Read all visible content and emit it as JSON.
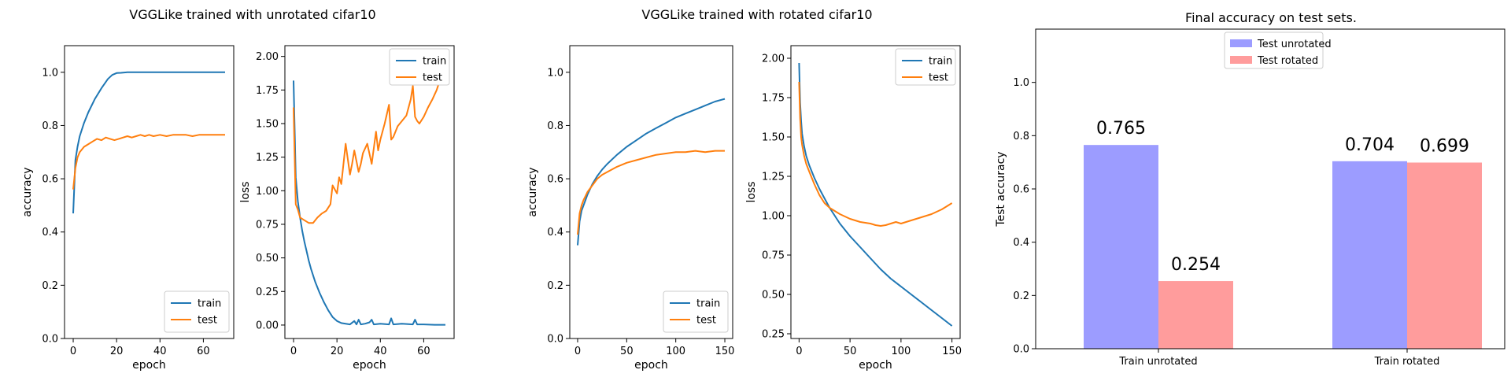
{
  "figure": {
    "group1_title": "VGGLike trained with unrotated cifar10",
    "group2_title": "VGGLike trained with rotated cifar10"
  },
  "colors": {
    "train": "#1f77b4",
    "test": "#ff7f0e",
    "test_unrotated": "#9c9cff",
    "test_rotated": "#ff9c9c"
  },
  "chart_data": [
    {
      "type": "line",
      "title": "",
      "xlabel": "epoch",
      "ylabel": "accuracy",
      "xlim": [
        -4,
        74
      ],
      "ylim": [
        0,
        1.1
      ],
      "xticks": [
        0,
        20,
        40,
        60
      ],
      "yticks": [
        0.0,
        0.2,
        0.4,
        0.6,
        0.8,
        1.0
      ],
      "ytick_labels": [
        "0.0",
        "0.2",
        "0.4",
        "0.6",
        "0.8",
        "1.0"
      ],
      "legend": "lower-right",
      "series": [
        {
          "name": "train",
          "color_key": "train",
          "x": [
            0,
            1,
            2,
            3,
            5,
            7,
            10,
            13,
            16,
            18,
            20,
            22,
            25,
            28,
            30,
            32,
            35,
            38,
            40,
            45,
            50,
            55,
            60,
            65,
            70
          ],
          "y": [
            0.47,
            0.67,
            0.72,
            0.76,
            0.81,
            0.85,
            0.9,
            0.94,
            0.975,
            0.99,
            0.997,
            0.998,
            1.0,
            1.0,
            1.0,
            1.0,
            1.0,
            1.0,
            1.0,
            1.0,
            1.0,
            1.0,
            1.0,
            1.0,
            1.0
          ]
        },
        {
          "name": "test",
          "color_key": "test",
          "x": [
            0,
            1,
            2,
            3,
            5,
            7,
            9,
            11,
            13,
            15,
            17,
            19,
            21,
            23,
            25,
            27,
            29,
            31,
            33,
            35,
            37,
            40,
            43,
            46,
            49,
            52,
            55,
            58,
            61,
            64,
            67,
            70
          ],
          "y": [
            0.56,
            0.64,
            0.68,
            0.7,
            0.72,
            0.73,
            0.74,
            0.75,
            0.745,
            0.755,
            0.75,
            0.745,
            0.75,
            0.755,
            0.76,
            0.755,
            0.76,
            0.765,
            0.76,
            0.765,
            0.76,
            0.765,
            0.76,
            0.765,
            0.765,
            0.765,
            0.76,
            0.765,
            0.765,
            0.765,
            0.765,
            0.765
          ]
        }
      ]
    },
    {
      "type": "line",
      "title": "",
      "xlabel": "epoch",
      "ylabel": "loss",
      "xlim": [
        -4,
        74
      ],
      "ylim": [
        -0.1,
        2.08
      ],
      "xticks": [
        0,
        20,
        40,
        60
      ],
      "yticks": [
        0.0,
        0.25,
        0.5,
        0.75,
        1.0,
        1.25,
        1.5,
        1.75,
        2.0
      ],
      "ytick_labels": [
        "0.00",
        "0.25",
        "0.50",
        "0.75",
        "1.00",
        "1.25",
        "1.50",
        "1.75",
        "2.00"
      ],
      "legend": "top-right",
      "series": [
        {
          "name": "train",
          "color_key": "train",
          "x": [
            0,
            1,
            2,
            3,
            4,
            5,
            6,
            7,
            8,
            10,
            12,
            14,
            16,
            18,
            20,
            22,
            24,
            26,
            28,
            29,
            30,
            31,
            33,
            35,
            36,
            37,
            40,
            44,
            45,
            46,
            50,
            55,
            56,
            57,
            60,
            65,
            70
          ],
          "y": [
            1.82,
            1.1,
            0.92,
            0.8,
            0.7,
            0.62,
            0.55,
            0.48,
            0.42,
            0.32,
            0.24,
            0.17,
            0.11,
            0.06,
            0.03,
            0.015,
            0.01,
            0.005,
            0.03,
            0.005,
            0.04,
            0.005,
            0.01,
            0.02,
            0.04,
            0.005,
            0.01,
            0.005,
            0.05,
            0.005,
            0.01,
            0.005,
            0.04,
            0.005,
            0.005,
            0.002,
            0.002
          ]
        },
        {
          "name": "test",
          "color_key": "test",
          "x": [
            0,
            1,
            2,
            3,
            5,
            7,
            9,
            11,
            13,
            15,
            17,
            18,
            20,
            21,
            22,
            24,
            26,
            27,
            28,
            30,
            31,
            32,
            34,
            36,
            38,
            39,
            40,
            42,
            44,
            45,
            46,
            48,
            50,
            52,
            54,
            55,
            56,
            57,
            58,
            60,
            62,
            64,
            66,
            68,
            70
          ],
          "y": [
            1.62,
            0.9,
            0.86,
            0.8,
            0.78,
            0.76,
            0.76,
            0.8,
            0.83,
            0.85,
            0.9,
            1.04,
            0.98,
            1.1,
            1.05,
            1.35,
            1.12,
            1.2,
            1.3,
            1.14,
            1.2,
            1.28,
            1.35,
            1.2,
            1.44,
            1.3,
            1.38,
            1.5,
            1.64,
            1.38,
            1.4,
            1.48,
            1.52,
            1.56,
            1.68,
            1.78,
            1.55,
            1.52,
            1.5,
            1.55,
            1.62,
            1.68,
            1.75,
            1.85,
            1.95
          ]
        }
      ]
    },
    {
      "type": "line",
      "title": "",
      "xlabel": "epoch",
      "ylabel": "accuracy",
      "xlim": [
        -8,
        158
      ],
      "ylim": [
        0,
        1.1
      ],
      "xticks": [
        0,
        50,
        100,
        150
      ],
      "yticks": [
        0.0,
        0.2,
        0.4,
        0.6,
        0.8,
        1.0
      ],
      "ytick_labels": [
        "0.0",
        "0.2",
        "0.4",
        "0.6",
        "0.8",
        "1.0"
      ],
      "legend": "lower-right",
      "series": [
        {
          "name": "train",
          "color_key": "train",
          "x": [
            0,
            2,
            4,
            6,
            8,
            10,
            15,
            20,
            25,
            30,
            40,
            50,
            60,
            70,
            80,
            90,
            100,
            110,
            120,
            130,
            140,
            150
          ],
          "y": [
            0.35,
            0.44,
            0.48,
            0.5,
            0.52,
            0.54,
            0.58,
            0.61,
            0.635,
            0.655,
            0.69,
            0.72,
            0.745,
            0.77,
            0.79,
            0.81,
            0.83,
            0.845,
            0.86,
            0.875,
            0.89,
            0.9
          ]
        },
        {
          "name": "test",
          "color_key": "test",
          "x": [
            0,
            2,
            4,
            6,
            8,
            10,
            15,
            20,
            25,
            30,
            40,
            50,
            60,
            70,
            80,
            90,
            100,
            110,
            120,
            130,
            140,
            150
          ],
          "y": [
            0.39,
            0.47,
            0.5,
            0.52,
            0.535,
            0.55,
            0.575,
            0.6,
            0.615,
            0.625,
            0.645,
            0.66,
            0.67,
            0.68,
            0.69,
            0.695,
            0.7,
            0.7,
            0.705,
            0.7,
            0.705,
            0.705
          ]
        }
      ]
    },
    {
      "type": "line",
      "title": "",
      "xlabel": "epoch",
      "ylabel": "loss",
      "xlim": [
        -8,
        158
      ],
      "ylim": [
        0.22,
        2.08
      ],
      "xticks": [
        0,
        50,
        100,
        150
      ],
      "yticks": [
        0.25,
        0.5,
        0.75,
        1.0,
        1.25,
        1.5,
        1.75,
        2.0
      ],
      "ytick_labels": [
        "0.25",
        "0.50",
        "0.75",
        "1.00",
        "1.25",
        "1.50",
        "1.75",
        "2.00"
      ],
      "legend": "top-right",
      "series": [
        {
          "name": "train",
          "color_key": "train",
          "x": [
            0,
            1,
            2,
            3,
            5,
            7,
            10,
            15,
            20,
            25,
            30,
            40,
            50,
            60,
            70,
            80,
            90,
            100,
            110,
            120,
            130,
            140,
            150
          ],
          "y": [
            1.97,
            1.72,
            1.6,
            1.52,
            1.44,
            1.38,
            1.32,
            1.24,
            1.17,
            1.11,
            1.05,
            0.95,
            0.87,
            0.8,
            0.73,
            0.66,
            0.6,
            0.55,
            0.5,
            0.45,
            0.4,
            0.35,
            0.3
          ]
        },
        {
          "name": "test",
          "color_key": "test",
          "x": [
            0,
            1,
            2,
            3,
            5,
            7,
            10,
            15,
            20,
            25,
            30,
            40,
            50,
            60,
            70,
            75,
            80,
            85,
            90,
            95,
            100,
            110,
            120,
            130,
            140,
            145,
            150
          ],
          "y": [
            1.85,
            1.62,
            1.5,
            1.45,
            1.38,
            1.33,
            1.28,
            1.2,
            1.13,
            1.08,
            1.05,
            1.01,
            0.98,
            0.96,
            0.95,
            0.94,
            0.935,
            0.94,
            0.95,
            0.96,
            0.95,
            0.97,
            0.99,
            1.01,
            1.04,
            1.06,
            1.08
          ]
        }
      ]
    },
    {
      "type": "bar",
      "title": "Final accuracy on test sets.",
      "xlabel": "",
      "ylabel": "Test accuracy",
      "ylim": [
        0,
        1.2
      ],
      "yticks": [
        0.0,
        0.2,
        0.4,
        0.6,
        0.8,
        1.0
      ],
      "ytick_labels": [
        "0.0",
        "0.2",
        "0.4",
        "0.6",
        "0.8",
        "1.0"
      ],
      "categories": [
        "Train unrotated",
        "Train rotated"
      ],
      "legend": "top-center",
      "series": [
        {
          "name": "Test unrotated",
          "color_key": "test_unrotated",
          "values": [
            0.765,
            0.704
          ],
          "labels": [
            "0.765",
            "0.704"
          ]
        },
        {
          "name": "Test rotated",
          "color_key": "test_rotated",
          "values": [
            0.254,
            0.699
          ],
          "labels": [
            "0.254",
            "0.699"
          ]
        }
      ]
    }
  ]
}
